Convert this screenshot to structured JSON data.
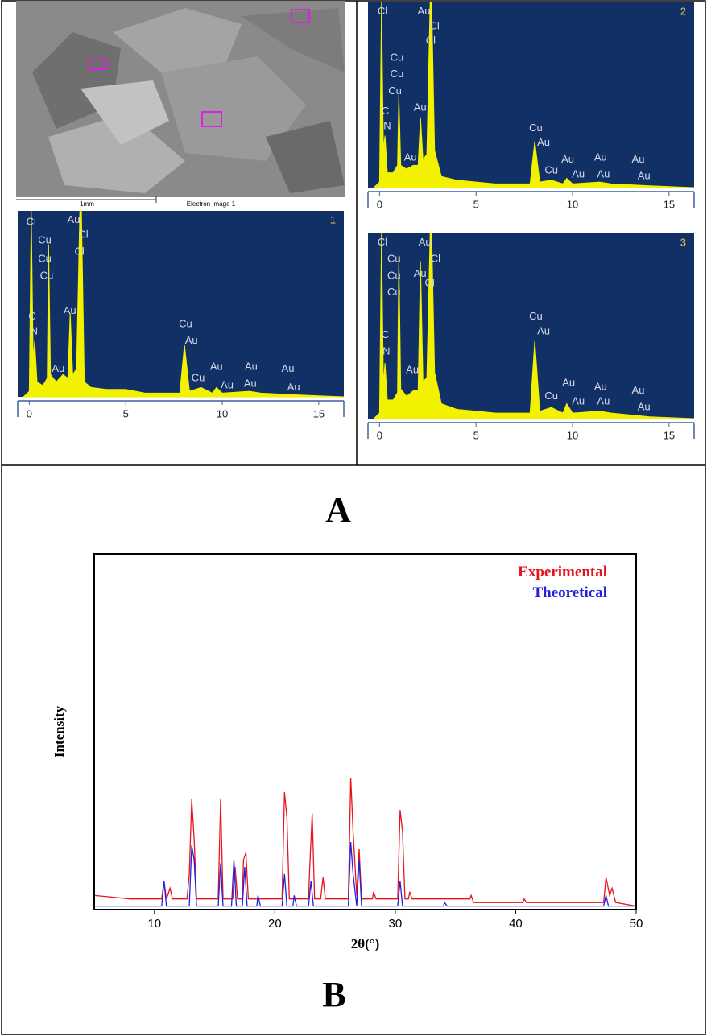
{
  "panels": [
    "A",
    "B"
  ],
  "sem": {
    "scale_label": "1mm",
    "caption": "Electron Image 1"
  },
  "chart_data": [
    {
      "type": "area",
      "title": "1",
      "xlim": [
        -0.6,
        16.3
      ],
      "ylim": [
        0,
        100
      ],
      "xticks": [
        0,
        5,
        10,
        15
      ],
      "color": "#f2f200",
      "background": "#103066",
      "x": [
        -0.3,
        0,
        0.1,
        0.2,
        0.28,
        0.4,
        0.7,
        0.93,
        1.0,
        1.1,
        1.4,
        1.75,
        2.0,
        2.12,
        2.25,
        2.45,
        2.62,
        2.7,
        2.85,
        3.2,
        4,
        5,
        6,
        7.8,
        8.04,
        8.3,
        8.9,
        9.5,
        9.7,
        10,
        11.4,
        12,
        14,
        16.3
      ],
      "values": [
        0,
        3,
        100,
        20,
        30,
        8,
        6,
        10,
        82,
        12,
        8,
        12,
        10,
        45,
        12,
        15,
        100,
        100,
        8,
        5,
        4,
        4,
        2,
        2,
        28,
        3,
        5,
        2,
        5,
        2,
        3,
        2,
        1,
        0
      ],
      "labels": [
        {
          "text": "Cl",
          "x": 0.1,
          "y": 94
        },
        {
          "text": "Cu",
          "x": 0.8,
          "y": 84
        },
        {
          "text": "Cu",
          "x": 0.8,
          "y": 74
        },
        {
          "text": "Cu",
          "x": 0.9,
          "y": 65
        },
        {
          "text": "C",
          "x": 0.15,
          "y": 43
        },
        {
          "text": "N",
          "x": 0.25,
          "y": 35
        },
        {
          "text": "Au",
          "x": 2.1,
          "y": 46
        },
        {
          "text": "Au",
          "x": 2.3,
          "y": 95
        },
        {
          "text": "Cl",
          "x": 2.8,
          "y": 87
        },
        {
          "text": "Cl",
          "x": 2.6,
          "y": 78
        },
        {
          "text": "Au",
          "x": 1.5,
          "y": 15
        },
        {
          "text": "Cu",
          "x": 8.1,
          "y": 39
        },
        {
          "text": "Au",
          "x": 8.4,
          "y": 30
        },
        {
          "text": "Cu",
          "x": 8.75,
          "y": 10
        },
        {
          "text": "Au",
          "x": 10.25,
          "y": 6
        },
        {
          "text": "Au",
          "x": 9.7,
          "y": 16
        },
        {
          "text": "Au",
          "x": 11.5,
          "y": 16
        },
        {
          "text": "Au",
          "x": 11.45,
          "y": 7
        },
        {
          "text": "Au",
          "x": 13.4,
          "y": 15
        },
        {
          "text": "Au",
          "x": 13.7,
          "y": 5
        }
      ]
    },
    {
      "type": "area",
      "title": "2",
      "xlim": [
        -0.6,
        16.3
      ],
      "ylim": [
        0,
        100
      ],
      "xticks": [
        0,
        5,
        10,
        15
      ],
      "color": "#f2f200",
      "background": "#103066",
      "x": [
        -0.3,
        0,
        0.1,
        0.2,
        0.28,
        0.4,
        0.7,
        0.93,
        1.0,
        1.1,
        1.4,
        1.75,
        2.0,
        2.12,
        2.25,
        2.45,
        2.62,
        2.7,
        2.85,
        3.2,
        4,
        5,
        6,
        7.8,
        8.04,
        8.3,
        8.9,
        9.5,
        9.7,
        10,
        11.4,
        12,
        14,
        16.3
      ],
      "values": [
        0,
        3,
        100,
        20,
        28,
        8,
        8,
        12,
        50,
        12,
        10,
        12,
        12,
        38,
        15,
        18,
        100,
        100,
        20,
        6,
        4,
        3,
        2,
        2,
        25,
        3,
        4,
        2,
        5,
        2,
        3,
        2,
        1,
        0
      ],
      "labels": [
        {
          "text": "Cl",
          "x": 0.15,
          "y": 95
        },
        {
          "text": "Au",
          "x": 2.3,
          "y": 95
        },
        {
          "text": "Cl",
          "x": 2.85,
          "y": 87
        },
        {
          "text": "Cl",
          "x": 2.65,
          "y": 79
        },
        {
          "text": "Cu",
          "x": 0.9,
          "y": 70
        },
        {
          "text": "Cu",
          "x": 0.9,
          "y": 61
        },
        {
          "text": "Cu",
          "x": 0.8,
          "y": 52
        },
        {
          "text": "C",
          "x": 0.3,
          "y": 41
        },
        {
          "text": "N",
          "x": 0.4,
          "y": 33
        },
        {
          "text": "Au",
          "x": 2.1,
          "y": 43
        },
        {
          "text": "Au",
          "x": 1.6,
          "y": 16
        },
        {
          "text": "Cu",
          "x": 8.1,
          "y": 32
        },
        {
          "text": "Au",
          "x": 8.5,
          "y": 24
        },
        {
          "text": "Cu",
          "x": 8.9,
          "y": 9
        },
        {
          "text": "Au",
          "x": 9.75,
          "y": 15
        },
        {
          "text": "Au",
          "x": 10.3,
          "y": 7
        },
        {
          "text": "Au",
          "x": 11.45,
          "y": 16
        },
        {
          "text": "Au",
          "x": 11.6,
          "y": 7
        },
        {
          "text": "Au",
          "x": 13.4,
          "y": 15
        },
        {
          "text": "Au",
          "x": 13.7,
          "y": 6
        }
      ]
    },
    {
      "type": "area",
      "title": "3",
      "xlim": [
        -0.6,
        16.3
      ],
      "ylim": [
        0,
        100
      ],
      "xticks": [
        0,
        5,
        10,
        15
      ],
      "color": "#f2f200",
      "background": "#103066",
      "x": [
        -0.3,
        0,
        0.1,
        0.2,
        0.28,
        0.4,
        0.7,
        0.93,
        1.0,
        1.1,
        1.4,
        1.75,
        2.0,
        2.12,
        2.25,
        2.45,
        2.62,
        2.7,
        2.85,
        3.2,
        4,
        5,
        6,
        7.8,
        8.04,
        8.3,
        8.9,
        9.5,
        9.7,
        10,
        11.4,
        12,
        14,
        16.3
      ],
      "values": [
        0,
        3,
        100,
        18,
        30,
        10,
        10,
        14,
        88,
        16,
        12,
        15,
        15,
        85,
        20,
        22,
        100,
        100,
        25,
        8,
        5,
        4,
        3,
        3,
        42,
        4,
        6,
        3,
        8,
        3,
        4,
        3,
        1,
        0
      ],
      "labels": [
        {
          "text": "Cl",
          "x": 0.15,
          "y": 95
        },
        {
          "text": "Au",
          "x": 2.35,
          "y": 95
        },
        {
          "text": "Cu",
          "x": 0.75,
          "y": 86
        },
        {
          "text": "Cu",
          "x": 0.75,
          "y": 77
        },
        {
          "text": "Cu",
          "x": 0.75,
          "y": 68
        },
        {
          "text": "Au",
          "x": 2.1,
          "y": 78
        },
        {
          "text": "Cl",
          "x": 2.9,
          "y": 86
        },
        {
          "text": "Cl",
          "x": 2.6,
          "y": 73
        },
        {
          "text": "C",
          "x": 0.3,
          "y": 45
        },
        {
          "text": "N",
          "x": 0.35,
          "y": 36
        },
        {
          "text": "Au",
          "x": 1.7,
          "y": 26
        },
        {
          "text": "Cu",
          "x": 8.1,
          "y": 55
        },
        {
          "text": "Au",
          "x": 8.5,
          "y": 47
        },
        {
          "text": "Cu",
          "x": 8.9,
          "y": 12
        },
        {
          "text": "Au",
          "x": 9.8,
          "y": 19
        },
        {
          "text": "Au",
          "x": 10.3,
          "y": 9
        },
        {
          "text": "Au",
          "x": 11.45,
          "y": 17
        },
        {
          "text": "Au",
          "x": 11.6,
          "y": 9
        },
        {
          "text": "Au",
          "x": 13.4,
          "y": 15
        },
        {
          "text": "Au",
          "x": 13.7,
          "y": 6
        }
      ]
    },
    {
      "type": "line",
      "xlabel": "2θ(°)",
      "ylabel": "Intensity",
      "xlim": [
        5,
        50
      ],
      "ylim": [
        0,
        100
      ],
      "xticks": [
        10,
        20,
        30,
        40,
        50
      ],
      "legend": "top-right",
      "series": [
        {
          "name": "Experimental",
          "color": "#e8141c",
          "x": [
            5,
            8,
            10.6,
            10.8,
            11.0,
            11.3,
            11.5,
            12.7,
            12.9,
            13.1,
            13.3,
            13.5,
            15.3,
            15.5,
            15.7,
            16.5,
            16.7,
            16.9,
            17.3,
            17.4,
            17.6,
            17.8,
            20.6,
            20.8,
            21.0,
            21.2,
            22.8,
            22.9,
            23.1,
            23.3,
            23.8,
            24.0,
            24.2,
            26.1,
            26.3,
            26.5,
            26.8,
            27.0,
            27.2,
            28.1,
            28.2,
            28.4,
            30.2,
            30.4,
            30.6,
            30.8,
            31.1,
            31.2,
            31.4,
            36.2,
            36.3,
            36.5,
            40.6,
            40.7,
            40.9,
            47.3,
            47.5,
            47.8,
            48.0,
            48.3,
            50
          ],
          "values": [
            4,
            3,
            3,
            8,
            3,
            6,
            3,
            3,
            10,
            31,
            20,
            3,
            3,
            31,
            3,
            3,
            12,
            3,
            3,
            14,
            16,
            3,
            3,
            33,
            26,
            3,
            3,
            12,
            27,
            3,
            3,
            9,
            3,
            3,
            37,
            22,
            4,
            17,
            3,
            3,
            5,
            3,
            3,
            28,
            22,
            3,
            3,
            5,
            3,
            3,
            4,
            2,
            2,
            3,
            2,
            2,
            9,
            4,
            6,
            2,
            1
          ]
        },
        {
          "name": "Theoretical",
          "color": "#2222dd",
          "x": [
            5,
            10.6,
            10.8,
            11.0,
            12.9,
            13.1,
            13.3,
            13.5,
            15.3,
            15.5,
            15.7,
            16.4,
            16.6,
            16.8,
            17.3,
            17.5,
            17.7,
            18.5,
            18.6,
            18.8,
            20.6,
            20.8,
            21.0,
            21.5,
            21.6,
            21.8,
            22.8,
            23.0,
            23.2,
            26.1,
            26.3,
            26.5,
            26.8,
            27.0,
            27.2,
            30.2,
            30.4,
            30.6,
            34.0,
            34.1,
            34.3,
            47.3,
            47.5,
            47.7,
            50
          ],
          "values": [
            1,
            1,
            8,
            1,
            1,
            18,
            14,
            1,
            1,
            13,
            1,
            1,
            14,
            1,
            1,
            12,
            1,
            1,
            4,
            1,
            1,
            10,
            1,
            1,
            4,
            1,
            1,
            8,
            1,
            1,
            19,
            10,
            1,
            14,
            1,
            1,
            8,
            1,
            1,
            2,
            1,
            1,
            4,
            1,
            1
          ]
        }
      ]
    }
  ]
}
